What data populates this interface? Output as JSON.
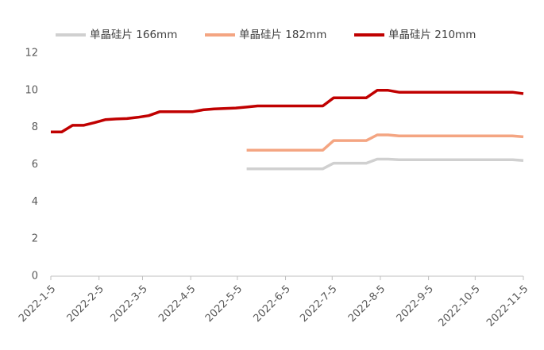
{
  "chart_data": {
    "type": "line",
    "x": [
      "2022-1-5",
      "2022-1-12",
      "2022-1-19",
      "2022-1-26",
      "2022-2-2",
      "2022-2-9",
      "2022-2-16",
      "2022-2-23",
      "2022-3-2",
      "2022-3-9",
      "2022-3-16",
      "2022-4-6",
      "2022-4-13",
      "2022-4-20",
      "2022-5-4",
      "2022-5-11",
      "2022-5-18",
      "2022-6-29",
      "2022-7-6",
      "2022-7-27",
      "2022-8-3",
      "2022-8-10",
      "2022-8-17",
      "2022-10-29",
      "2022-11-5"
    ],
    "series": [
      {
        "name": "单晶硅片 166mm",
        "color": "#d0d0d0",
        "values": [
          null,
          null,
          null,
          null,
          null,
          null,
          null,
          null,
          null,
          null,
          null,
          null,
          null,
          null,
          null,
          5.78,
          5.78,
          5.78,
          6.08,
          6.08,
          6.3,
          6.3,
          6.27,
          6.27,
          6.22
        ]
      },
      {
        "name": "单晶硅片 182mm",
        "color": "#f4a582",
        "values": [
          null,
          null,
          null,
          null,
          null,
          null,
          null,
          null,
          null,
          null,
          null,
          null,
          null,
          null,
          null,
          6.78,
          6.78,
          6.78,
          7.3,
          7.3,
          7.6,
          7.6,
          7.55,
          7.55,
          7.5
        ]
      },
      {
        "name": "单晶硅片 210mm",
        "color": "#c00000",
        "values": [
          7.76,
          7.76,
          8.12,
          8.12,
          8.26,
          8.42,
          8.46,
          8.48,
          8.55,
          8.64,
          8.85,
          8.85,
          8.95,
          9.0,
          9.05,
          9.1,
          9.16,
          9.16,
          9.6,
          9.6,
          10.0,
          10.0,
          9.9,
          9.9,
          9.82
        ]
      }
    ],
    "xlim": [
      "2022-1-5",
      "2022-11-5"
    ],
    "xticks": [
      "2022-1-5",
      "2022-2-5",
      "2022-3-5",
      "2022-4-5",
      "2022-5-5",
      "2022-6-5",
      "2022-7-5",
      "2022-8-5",
      "2022-9-5",
      "2022-10-5",
      "2022-11-5"
    ],
    "ylim": [
      0,
      12
    ],
    "yticks": [
      0,
      2,
      4,
      6,
      8,
      10,
      12
    ],
    "legend": "top"
  }
}
